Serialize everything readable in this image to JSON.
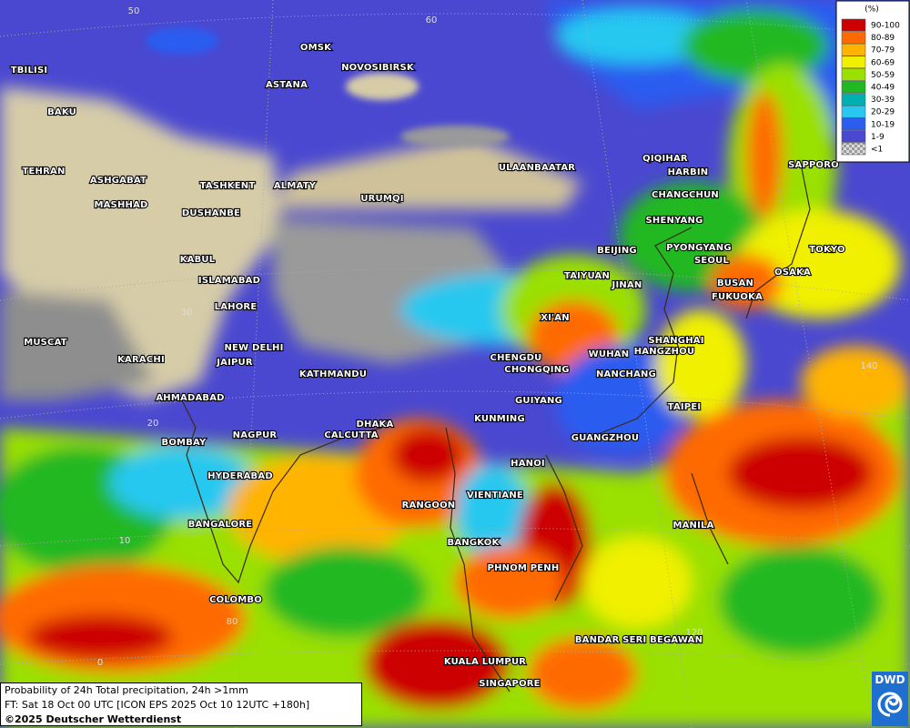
{
  "legend": {
    "unit": "(%)",
    "items": [
      {
        "label": "90-100",
        "color": "#cc0000"
      },
      {
        "label": "80-89",
        "color": "#ff6a00"
      },
      {
        "label": "70-79",
        "color": "#ffb400"
      },
      {
        "label": "60-69",
        "color": "#f0f000"
      },
      {
        "label": "50-59",
        "color": "#9ae000"
      },
      {
        "label": "40-49",
        "color": "#22b822"
      },
      {
        "label": "30-39",
        "color": "#00b0b0"
      },
      {
        "label": "20-29",
        "color": "#28c8f0"
      },
      {
        "label": "10-19",
        "color": "#2c5cf0"
      },
      {
        "label": "1-9",
        "color": "#4a48d0"
      },
      {
        "label": "<1",
        "color": "#b8b8b8"
      }
    ]
  },
  "cities": [
    "OMSK",
    "NOVOSIBIRSK",
    "ASTANA",
    "TBILISI",
    "BAKU",
    "TEHRAN",
    "ASHGABAT",
    "MASHHAD",
    "TASHKENT",
    "ALMATY",
    "URUMQI",
    "DUSHANBE",
    "KABUL",
    "ISLAMABAD",
    "LAHORE",
    "NEW DELHI",
    "JAIPUR",
    "MUSCAT",
    "KARACHI",
    "AHMADABAD",
    "KATHMANDU",
    "DHAKA",
    "CALCUTTA",
    "NAGPUR",
    "BOMBAY",
    "HYDERABAD",
    "BANGALORE",
    "COLOMBO",
    "RANGOON",
    "VIENTIANE",
    "BANGKOK",
    "PHNOM PENH",
    "HANOI",
    "KUNMING",
    "GUIYANG",
    "CHENGDU",
    "CHONGQING",
    "XI'AN",
    "WUHAN",
    "NANCHANG",
    "HANGZHOU",
    "SHANGHAI",
    "TAIPEI",
    "GUANGZHOU",
    "MANILA",
    "BANDAR SERI BEGAWAN",
    "KUALA LUMPUR",
    "SINGAPORE",
    "ULAANBAATAR",
    "QIQIHAR",
    "HARBIN",
    "CHANGCHUN",
    "SHENYANG",
    "BEIJING",
    "TAIYUAN",
    "JINAN",
    "PYONGYANG",
    "SEOUL",
    "BUSAN",
    "FUKUOKA",
    "OSAKA",
    "TOKYO",
    "SAPPORO"
  ],
  "grid_labels": [
    "50",
    "60",
    "30",
    "20",
    "10",
    "0",
    "80",
    "140",
    "120"
  ],
  "caption": {
    "line1": "Probability of 24h Total precipitation, 24h >1mm",
    "line2": "FT: Sat 18 Oct 00 UTC [ICON EPS 2025 Oct 10 12UTC +180h]",
    "copyright": "©2025 Deutscher Wetterdienst"
  },
  "logo": "DWD"
}
